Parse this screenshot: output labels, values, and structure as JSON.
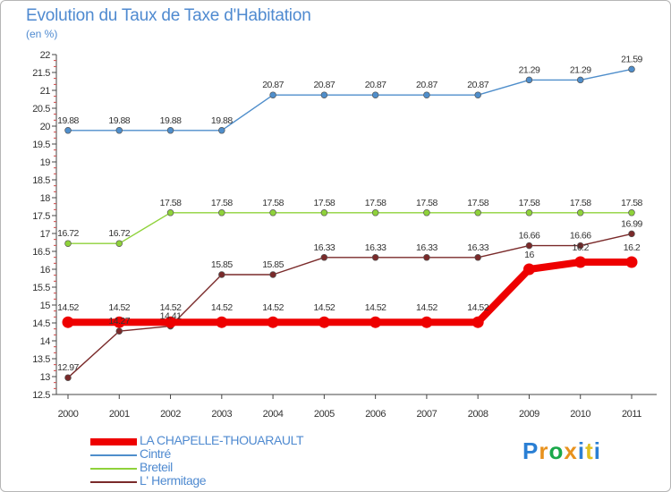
{
  "header": {
    "title": "Evolution du Taux de Taxe d'Habitation",
    "subtitle": "(en %)"
  },
  "logo": {
    "text": "Proxiti",
    "colors": [
      "#2a7fd4",
      "#e8921e",
      "#1aa84a",
      "#e8921e",
      "#2a7fd4",
      "#e0c020",
      "#2a7fd4"
    ]
  },
  "chart_data": {
    "type": "line",
    "title": "Evolution du Taux de Taxe d'Habitation",
    "ylabel": "(en %)",
    "xlabel": "",
    "x": [
      "2000",
      "2001",
      "2002",
      "2003",
      "2004",
      "2005",
      "2006",
      "2007",
      "2008",
      "2009",
      "2010",
      "2011"
    ],
    "ylim": [
      12.5,
      22
    ],
    "yticks": [
      "12.5",
      "13",
      "13.5",
      "14",
      "14.5",
      "15",
      "15.5",
      "16",
      "16.5",
      "17",
      "17.5",
      "18",
      "18.5",
      "19",
      "19.5",
      "20",
      "20.5",
      "21",
      "21.5",
      "22"
    ],
    "grid": false,
    "legend_position": "bottom-left",
    "series": [
      {
        "name": "LA CHAPELLE-THOUARAULT",
        "color": "#ee0000",
        "bold": true,
        "values": [
          14.52,
          14.52,
          14.52,
          14.52,
          14.52,
          14.52,
          14.52,
          14.52,
          14.52,
          16,
          16.2,
          16.2
        ],
        "labels": [
          "14.52",
          "14.52",
          "14.52",
          "14.52",
          "14.52",
          "14.52",
          "14.52",
          "14.52",
          "14.52",
          "16",
          "16.2",
          "16.2"
        ]
      },
      {
        "name": "Cintré",
        "color": "#4f8ecb",
        "bold": false,
        "values": [
          19.88,
          19.88,
          19.88,
          19.88,
          20.87,
          20.87,
          20.87,
          20.87,
          20.87,
          21.29,
          21.29,
          21.59
        ],
        "labels": [
          "19.88",
          "19.88",
          "19.88",
          "19.88",
          "20.87",
          "20.87",
          "20.87",
          "20.87",
          "20.87",
          "21.29",
          "21.29",
          "21.59"
        ]
      },
      {
        "name": "Breteil",
        "color": "#8fd23a",
        "bold": false,
        "values": [
          16.72,
          16.72,
          17.58,
          17.58,
          17.58,
          17.58,
          17.58,
          17.58,
          17.58,
          17.58,
          17.58,
          17.58
        ],
        "labels": [
          "16.72",
          "16.72",
          "17.58",
          "17.58",
          "17.58",
          "17.58",
          "17.58",
          "17.58",
          "17.58",
          "17.58",
          "17.58",
          "17.58"
        ]
      },
      {
        "name": "L' Hermitage",
        "color": "#7a2a2a",
        "bold": false,
        "values": [
          12.97,
          14.27,
          14.41,
          15.85,
          15.85,
          16.33,
          16.33,
          16.33,
          16.33,
          16.66,
          16.66,
          16.99
        ],
        "labels": [
          "12.97",
          "14.27",
          "14.41",
          "15.85",
          "15.85",
          "16.33",
          "16.33",
          "16.33",
          "16.33",
          "16.66",
          "16.66",
          "16.99"
        ]
      }
    ]
  }
}
